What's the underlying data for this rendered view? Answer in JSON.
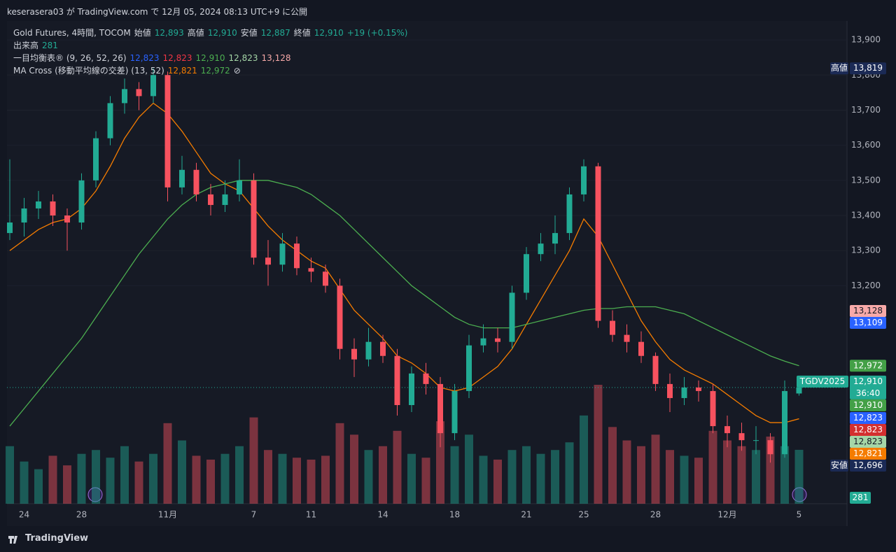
{
  "header": {
    "text": "keserasera03 が TradingView.com で 12月 05, 2024 08:13 UTC+9 に公開"
  },
  "chart_data": {
    "type": "candlestick",
    "legend": [
      {
        "parts": [
          {
            "text": "Gold Futures, 4時間, TOCOM",
            "color": "#d1d4dc"
          },
          {
            "text": "始値",
            "color": "#d1d4dc"
          },
          {
            "text": "12,893",
            "color": "#22ab94"
          },
          {
            "text": "高値",
            "color": "#d1d4dc"
          },
          {
            "text": "12,910",
            "color": "#22ab94"
          },
          {
            "text": "安値",
            "color": "#d1d4dc"
          },
          {
            "text": "12,887",
            "color": "#22ab94"
          },
          {
            "text": "終値",
            "color": "#d1d4dc"
          },
          {
            "text": "12,910",
            "color": "#22ab94"
          },
          {
            "text": "+19 (+0.15%)",
            "color": "#22ab94"
          }
        ]
      },
      {
        "parts": [
          {
            "text": "出来高",
            "color": "#d1d4dc"
          },
          {
            "text": "281",
            "color": "#22ab94"
          }
        ]
      },
      {
        "parts": [
          {
            "text": "一目均衡表® (9, 26, 52, 26)",
            "color": "#d1d4dc"
          },
          {
            "text": "12,823",
            "color": "#2962ff"
          },
          {
            "text": "12,823",
            "color": "#f23645"
          },
          {
            "text": "12,910",
            "color": "#4caf50"
          },
          {
            "text": "12,823",
            "color": "#a5d6a7"
          },
          {
            "text": "13,128",
            "color": "#f7a9a8"
          }
        ]
      },
      {
        "parts": [
          {
            "text": "MA Cross (移動平均線の交差) (13, 52)",
            "color": "#d1d4dc"
          },
          {
            "text": "12,821",
            "color": "#f57c00"
          },
          {
            "text": "12,972",
            "color": "#4caf50"
          },
          {
            "text": "⊘",
            "color": "#d1d4dc"
          }
        ]
      }
    ],
    "categories": [
      null,
      "24",
      null,
      null,
      null,
      "28",
      null,
      null,
      null,
      null,
      null,
      "11月",
      null,
      null,
      null,
      null,
      null,
      "7",
      null,
      null,
      null,
      "11",
      null,
      null,
      null,
      null,
      "14",
      null,
      null,
      null,
      null,
      "18",
      null,
      null,
      null,
      null,
      "21",
      null,
      null,
      null,
      "25",
      null,
      null,
      null,
      null,
      "28",
      null,
      null,
      null,
      null,
      "12月",
      null,
      null,
      null,
      null,
      "5"
    ],
    "open": [
      13350,
      13380,
      13420,
      13440,
      13400,
      13380,
      13500,
      13620,
      13720,
      13760,
      13740,
      13800,
      13480,
      13530,
      13460,
      13430,
      13460,
      13500,
      13280,
      13260,
      13320,
      13250,
      13240,
      13200,
      13020,
      12990,
      13040,
      13000,
      12860,
      12950,
      12920,
      12780,
      12900,
      13030,
      13050,
      13040,
      13180,
      13290,
      13320,
      13350,
      13460,
      13540,
      13100,
      13060,
      13040,
      13000,
      12920,
      12880,
      12910,
      12900,
      12800,
      12780,
      12760,
      12760,
      12720,
      12893
    ],
    "high": [
      13560,
      13450,
      13470,
      13460,
      13420,
      13520,
      13640,
      13740,
      13790,
      13780,
      13819,
      13810,
      13570,
      13550,
      13490,
      13500,
      13560,
      13520,
      13330,
      13350,
      13340,
      13280,
      13260,
      13220,
      13050,
      13080,
      13060,
      13020,
      12970,
      12980,
      12940,
      12920,
      13060,
      13090,
      13080,
      13200,
      13310,
      13350,
      13400,
      13480,
      13560,
      13550,
      13130,
      13090,
      13070,
      13010,
      12950,
      12940,
      12930,
      12920,
      12830,
      12810,
      12800,
      12780,
      12930,
      12910
    ],
    "low": [
      13330,
      13340,
      13390,
      13370,
      13300,
      13360,
      13480,
      13600,
      13690,
      13700,
      13720,
      13440,
      13460,
      13440,
      13400,
      13410,
      13440,
      13260,
      13200,
      13240,
      13230,
      13210,
      13180,
      12990,
      12940,
      12970,
      12980,
      12830,
      12840,
      12890,
      12740,
      12760,
      12880,
      13010,
      13010,
      13020,
      13160,
      13270,
      13290,
      13330,
      13440,
      13080,
      13040,
      13010,
      12980,
      12900,
      12840,
      12860,
      12870,
      12780,
      12740,
      12730,
      12720,
      12696,
      12710,
      12887
    ],
    "close": [
      13380,
      13420,
      13440,
      13400,
      13380,
      13500,
      13620,
      13720,
      13760,
      13740,
      13800,
      13480,
      13530,
      13460,
      13430,
      13460,
      13500,
      13280,
      13260,
      13320,
      13250,
      13240,
      13200,
      13020,
      12990,
      13040,
      13000,
      12860,
      12950,
      12920,
      12780,
      12900,
      13030,
      13050,
      13040,
      13180,
      13290,
      13320,
      13350,
      13460,
      13540,
      13100,
      13060,
      13040,
      13000,
      12920,
      12880,
      12910,
      12900,
      12800,
      12780,
      12760,
      12760,
      12720,
      12900,
      12910
    ],
    "volume": [
      300,
      220,
      180,
      250,
      200,
      260,
      280,
      240,
      300,
      220,
      260,
      420,
      330,
      250,
      230,
      260,
      300,
      450,
      280,
      260,
      240,
      230,
      250,
      420,
      360,
      280,
      300,
      380,
      260,
      240,
      430,
      300,
      360,
      250,
      230,
      280,
      300,
      260,
      280,
      320,
      460,
      620,
      400,
      330,
      300,
      360,
      280,
      250,
      240,
      380,
      330,
      300,
      280,
      350,
      300,
      281
    ],
    "up_color": "#22ab94",
    "down_color": "#f7525f",
    "series": [
      {
        "color": "#f57c00",
        "values": [
          13300,
          13330,
          13360,
          13380,
          13390,
          13420,
          13470,
          13540,
          13620,
          13680,
          13720,
          13690,
          13640,
          13580,
          13520,
          13490,
          13470,
          13420,
          13370,
          13330,
          13300,
          13270,
          13250,
          13190,
          13130,
          13090,
          13050,
          13000,
          12980,
          12950,
          12910,
          12900,
          12910,
          12940,
          12970,
          13020,
          13090,
          13160,
          13230,
          13300,
          13390,
          13340,
          13260,
          13180,
          13100,
          13040,
          12990,
          12960,
          12940,
          12920,
          12890,
          12860,
          12830,
          12810,
          12810,
          12821
        ]
      },
      {
        "color": "#4caf50",
        "values": [
          12800,
          12850,
          12900,
          12950,
          13000,
          13050,
          13110,
          13170,
          13230,
          13290,
          13340,
          13390,
          13430,
          13460,
          13480,
          13490,
          13500,
          13500,
          13500,
          13490,
          13480,
          13460,
          13430,
          13400,
          13360,
          13320,
          13280,
          13240,
          13200,
          13170,
          13140,
          13110,
          13090,
          13080,
          13080,
          13080,
          13090,
          13100,
          13110,
          13120,
          13130,
          13135,
          13135,
          13140,
          13140,
          13140,
          13130,
          13120,
          13100,
          13080,
          13060,
          13040,
          13020,
          13000,
          12985,
          12972
        ]
      }
    ],
    "ylim": [
      12579,
      13954
    ],
    "yticks": [
      {
        "value": 13200,
        "label": "13,200"
      },
      {
        "value": 13300,
        "label": "13,300"
      },
      {
        "value": 13400,
        "label": "13,400"
      },
      {
        "value": 13500,
        "label": "13,500"
      },
      {
        "value": 13600,
        "label": "13,600"
      },
      {
        "value": 13700,
        "label": "13,700"
      },
      {
        "value": 13800,
        "label": "13,800"
      },
      {
        "value": 13900,
        "label": "13,900"
      }
    ],
    "price_labels": [
      {
        "value": 13819,
        "label": "13,819",
        "tag": "高値",
        "bg": "#1b2a55",
        "fg": "#ffffff"
      },
      {
        "value": 13128,
        "label": "13,128",
        "bg": "#f7a9a8",
        "fg": "#131722"
      },
      {
        "value": 13109,
        "label": "13,109",
        "bg": "#2962ff",
        "fg": "#ffffff"
      },
      {
        "value": 12972,
        "label": "12,972",
        "bg": "#43a047",
        "fg": "#ffffff"
      },
      {
        "value": 12910,
        "label": "12,910",
        "tag": "TGDV2025",
        "countdown": "36:40",
        "bg": "#22ab94",
        "fg": "#ffffff"
      },
      {
        "value": 12910,
        "label": "12,910",
        "bg": "#43a047",
        "fg": "#ffffff"
      },
      {
        "value": 12823,
        "label": "12,823",
        "bg": "#2962ff",
        "fg": "#ffffff"
      },
      {
        "value": 12823,
        "label": "12,823",
        "bg": "#d32f2f",
        "fg": "#ffffff"
      },
      {
        "value": 12823,
        "label": "12,823",
        "bg": "#a5d6a7",
        "fg": "#131722"
      },
      {
        "value": 12821,
        "label": "12,821",
        "bg": "#f57c00",
        "fg": "#ffffff"
      },
      {
        "value": 12696,
        "label": "12,696",
        "tag": "安値",
        "bg": "#1b2a55",
        "fg": "#ffffff"
      }
    ],
    "volume_label": "281"
  },
  "footer": {
    "brand": "TradingView"
  }
}
